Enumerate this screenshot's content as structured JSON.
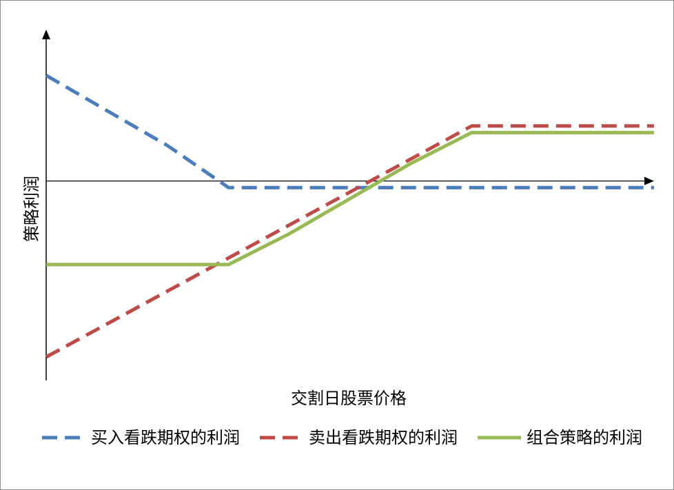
{
  "chart_data": {
    "type": "line",
    "title": "",
    "xlabel": "交割日股票价格",
    "ylabel": "策略利润",
    "x": [
      0,
      1,
      2,
      3,
      4,
      5,
      6,
      7,
      8,
      9,
      10
    ],
    "xlim": [
      0,
      10
    ],
    "ylim": [
      -8,
      5
    ],
    "grid": false,
    "legend_position": "bottom",
    "series": [
      {
        "name": "买入看跌期权的利润",
        "style": "dashed",
        "color": "#4a7ebb",
        "values": [
          4.8,
          3.2,
          1.6,
          -0.3,
          -0.3,
          -0.3,
          -0.3,
          -0.3,
          -0.3,
          -0.3,
          -0.3
        ]
      },
      {
        "name": "卖出看跌期权的利润",
        "style": "dashed",
        "color": "#be4b48",
        "values": [
          -8,
          -6.5,
          -5,
          -3.5,
          -2,
          -0.5,
          1,
          2.5,
          2.5,
          2.5,
          2.5
        ]
      },
      {
        "name": "组合策略的利润",
        "style": "solid",
        "color": "#98b954",
        "values": [
          -3.8,
          -3.8,
          -3.8,
          -3.8,
          -2.4,
          -0.8,
          0.8,
          2.2,
          2.2,
          2.2,
          2.2
        ]
      }
    ]
  }
}
